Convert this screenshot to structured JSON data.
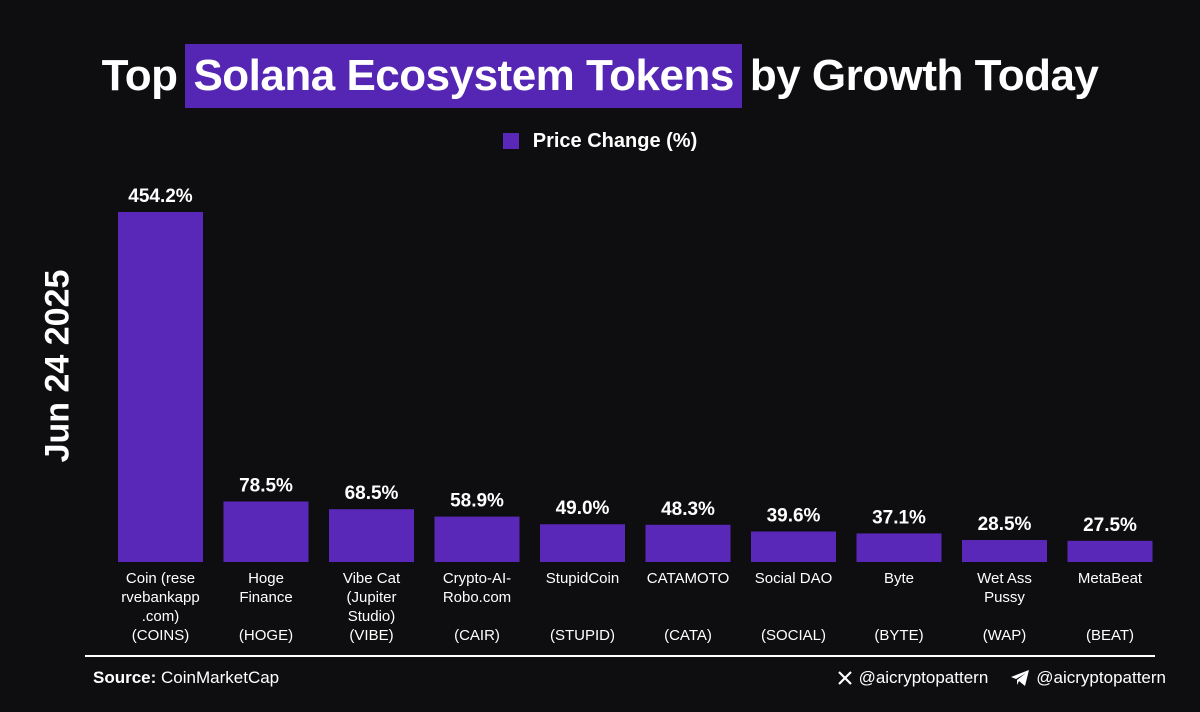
{
  "title": {
    "pre": "Top",
    "highlight": "Solana Ecosystem Tokens",
    "post": "by Growth Today",
    "highlight_color": "#5426b3"
  },
  "legend": {
    "label": "Price Change (%)",
    "color": "#5a28b8"
  },
  "date": "Jun 24 2025",
  "chart_data": {
    "type": "bar",
    "series": [
      {
        "name": "Price Change (%)",
        "color": "#5a28b8"
      }
    ],
    "categories": [
      {
        "name": [
          "Coin (rese",
          "rvebankapp",
          ".com)"
        ],
        "symbol": "(COINS)"
      },
      {
        "name": [
          "Hoge",
          "Finance"
        ],
        "symbol": "(HOGE)"
      },
      {
        "name": [
          "Vibe Cat",
          "(Jupiter",
          "Studio)"
        ],
        "symbol": "(VIBE)"
      },
      {
        "name": [
          "Crypto-AI-",
          "Robo.com"
        ],
        "symbol": "(CAIR)"
      },
      {
        "name": [
          "StupidCoin"
        ],
        "symbol": "(STUPID)"
      },
      {
        "name": [
          "CATAMOTO"
        ],
        "symbol": "(CATA)"
      },
      {
        "name": [
          "Social DAO"
        ],
        "symbol": "(SOCIAL)"
      },
      {
        "name": [
          "Byte"
        ],
        "symbol": "(BYTE)"
      },
      {
        "name": [
          "Wet Ass",
          "Pussy"
        ],
        "symbol": "(WAP)"
      },
      {
        "name": [
          "MetaBeat"
        ],
        "symbol": "(BEAT)"
      }
    ],
    "values": [
      454.2,
      78.5,
      68.5,
      58.9,
      49.0,
      48.3,
      39.6,
      37.1,
      28.5,
      27.5
    ],
    "labels": [
      "454.2%",
      "78.5%",
      "68.5%",
      "58.9%",
      "49.0%",
      "48.3%",
      "39.6%",
      "37.1%",
      "28.5%",
      "27.5%"
    ],
    "ylim": [
      0,
      454.2
    ],
    "grid": false,
    "legend_position": "top-center"
  },
  "footer": {
    "source_label": "Source:",
    "source_value": "CoinMarketCap",
    "x_handle": "@aicryptopattern",
    "telegram_handle": "@aicryptopattern"
  }
}
